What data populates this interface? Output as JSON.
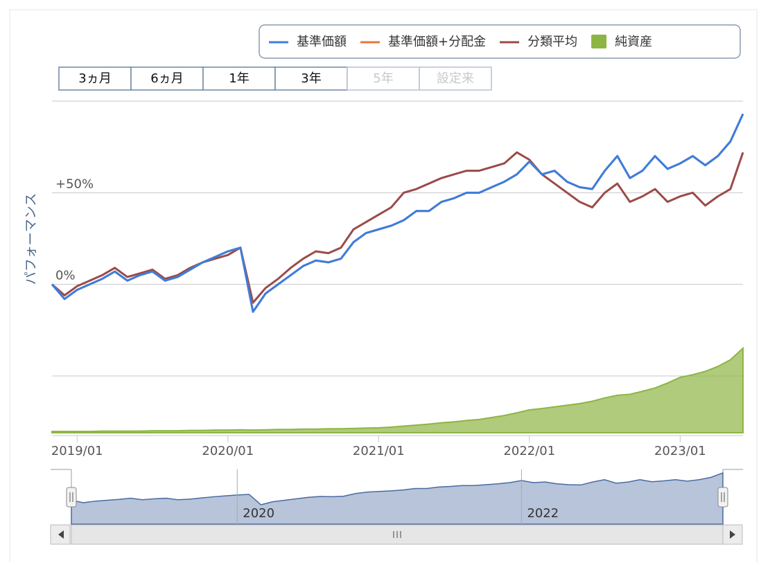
{
  "chart_data": {
    "type": "line",
    "yaxis_title": "パフォーマンス",
    "x": [
      "2018/11",
      "2018/12",
      "2019/01",
      "2019/02",
      "2019/03",
      "2019/04",
      "2019/05",
      "2019/06",
      "2019/07",
      "2019/08",
      "2019/09",
      "2019/10",
      "2019/11",
      "2019/12",
      "2020/01",
      "2020/02",
      "2020/03",
      "2020/04",
      "2020/05",
      "2020/06",
      "2020/07",
      "2020/08",
      "2020/09",
      "2020/10",
      "2020/11",
      "2020/12",
      "2021/01",
      "2021/02",
      "2021/03",
      "2021/04",
      "2021/05",
      "2021/06",
      "2021/07",
      "2021/08",
      "2021/09",
      "2021/10",
      "2021/11",
      "2021/12",
      "2022/01",
      "2022/02",
      "2022/03",
      "2022/04",
      "2022/05",
      "2022/06",
      "2022/07",
      "2022/08",
      "2022/09",
      "2022/10",
      "2022/11",
      "2022/12",
      "2023/01",
      "2023/02",
      "2023/03",
      "2023/04",
      "2023/05",
      "2023/06"
    ],
    "xlim": [
      "2018/11",
      "2023/06"
    ],
    "xticks": [
      "2019/01",
      "2020/01",
      "2021/01",
      "2022/01",
      "2023/01"
    ],
    "ylim": [
      -81,
      100
    ],
    "yticks": [
      {
        "value": 0,
        "label": "0%"
      },
      {
        "value": 50,
        "label": "+50%"
      }
    ],
    "grid_lines": [
      -50,
      100
    ],
    "y2lim": [
      0,
      100
    ],
    "series": [
      {
        "name": "分類平均",
        "color": "#9b4a48",
        "type": "line",
        "values": [
          0,
          -6,
          -1,
          2,
          5,
          9,
          4,
          6,
          8,
          3,
          5,
          9,
          12,
          14,
          16,
          20,
          -10,
          -2,
          3,
          9,
          14,
          18,
          17,
          20,
          30,
          34,
          38,
          42,
          50,
          52,
          55,
          58,
          60,
          62,
          62,
          64,
          66,
          72,
          68,
          60,
          55,
          50,
          45,
          42,
          50,
          55,
          45,
          48,
          52,
          45,
          48,
          50,
          43,
          48,
          52,
          72
        ]
      },
      {
        "name": "基準価額+分配金",
        "color": "#e8743b",
        "type": "line",
        "values": [
          0,
          -8,
          -3,
          0,
          3,
          7,
          2,
          5,
          7,
          2,
          4,
          8,
          12,
          15,
          18,
          20,
          -15,
          -5,
          0,
          5,
          10,
          13,
          12,
          14,
          23,
          28,
          30,
          32,
          35,
          40,
          40,
          45,
          47,
          50,
          50,
          53,
          56,
          60,
          67,
          60,
          62,
          56,
          53,
          52,
          62,
          70,
          58,
          62,
          70,
          63,
          66,
          70,
          65,
          70,
          78,
          93
        ]
      },
      {
        "name": "基準価額",
        "color": "#3a7ee0",
        "type": "line",
        "values": [
          0,
          -8,
          -3,
          0,
          3,
          7,
          2,
          5,
          7,
          2,
          4,
          8,
          12,
          15,
          18,
          20,
          -15,
          -5,
          0,
          5,
          10,
          13,
          12,
          14,
          23,
          28,
          30,
          32,
          35,
          40,
          40,
          45,
          47,
          50,
          50,
          53,
          56,
          60,
          67,
          60,
          62,
          56,
          53,
          52,
          62,
          70,
          58,
          62,
          70,
          63,
          66,
          70,
          65,
          70,
          78,
          93
        ]
      },
      {
        "name": "純資産",
        "color": "#8db543",
        "type": "area",
        "axis": "y2",
        "values": [
          0.4,
          0.4,
          0.4,
          0.4,
          0.5,
          0.5,
          0.5,
          0.5,
          0.6,
          0.6,
          0.6,
          0.7,
          0.7,
          0.8,
          0.8,
          0.9,
          0.8,
          0.9,
          1.0,
          1.0,
          1.1,
          1.1,
          1.2,
          1.2,
          1.3,
          1.4,
          1.5,
          1.7,
          2.0,
          2.3,
          2.6,
          3.0,
          3.3,
          3.7,
          4.0,
          4.6,
          5.2,
          6.0,
          6.9,
          7.3,
          7.8,
          8.3,
          8.8,
          9.5,
          10.5,
          11.3,
          11.6,
          12.5,
          13.5,
          15.0,
          16.7,
          17.5,
          18.5,
          20.0,
          22.0,
          25.5
        ]
      }
    ],
    "legend_order": [
      2,
      1,
      0,
      3
    ],
    "range_buttons": [
      {
        "label": "3ヵ月",
        "enabled": true
      },
      {
        "label": "6ヵ月",
        "enabled": true
      },
      {
        "label": "1年",
        "enabled": true
      },
      {
        "label": "3年",
        "enabled": true
      },
      {
        "label": "5年",
        "enabled": false
      },
      {
        "label": "設定来",
        "enabled": false
      }
    ],
    "navigator": {
      "series": 2,
      "xticks": [
        {
          "value": "2020/01",
          "label": "2020"
        },
        {
          "value": "2022/01",
          "label": "2022"
        }
      ]
    }
  }
}
